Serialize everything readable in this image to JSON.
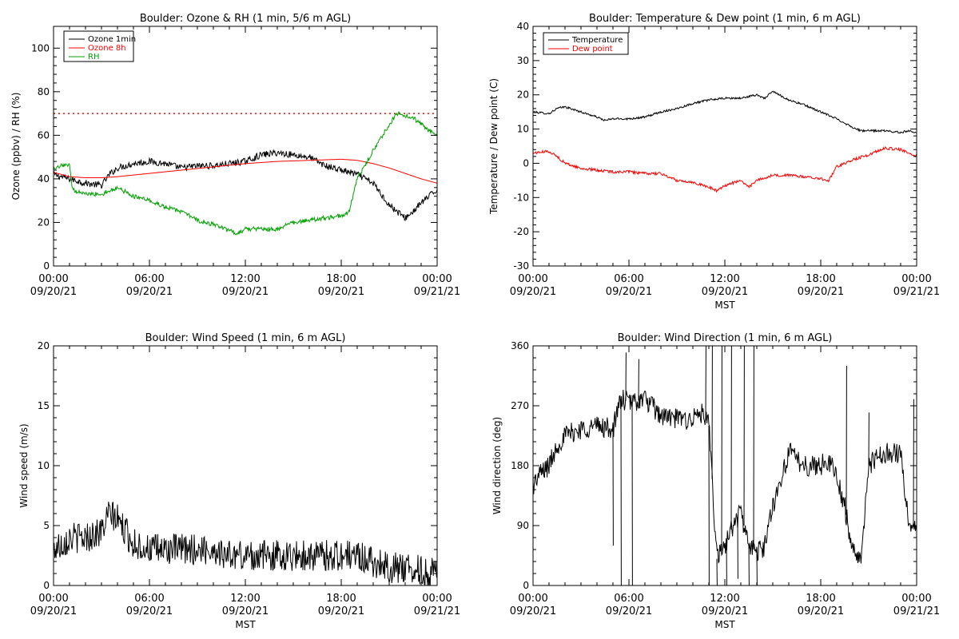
{
  "chart_data": [
    {
      "id": "ozone",
      "type": "line",
      "title": "Boulder: Ozone & RH (1 min, 5/6 m AGL)",
      "xlabel": "",
      "ylabel": "Ozone (ppbv) / RH (%)",
      "xlim": [
        0,
        24
      ],
      "ylim": [
        0,
        110
      ],
      "y_ticks": [
        0,
        20,
        40,
        60,
        80,
        100
      ],
      "x_ticks": [
        0,
        6,
        12,
        18,
        24
      ],
      "x_tick_labels": [
        [
          "00:00",
          "09/20/21"
        ],
        [
          "06:00",
          "09/20/21"
        ],
        [
          "12:00",
          "09/20/21"
        ],
        [
          "18:00",
          "09/20/21"
        ],
        [
          "00:00",
          "09/21/21"
        ]
      ],
      "legend_position": "top-left",
      "reference_line": {
        "y": 70,
        "color": "#ff0000",
        "style": "dotted"
      },
      "series": [
        {
          "name": "Ozone 1min",
          "color": "#000000",
          "noise": 1.5,
          "x": [
            0,
            1,
            2,
            3,
            3.5,
            4,
            5,
            6,
            7,
            8,
            9,
            10,
            11,
            12,
            13,
            14,
            15,
            16,
            17,
            18,
            19,
            20,
            20.5,
            21,
            21.5,
            22,
            22.5,
            23,
            23.5,
            24
          ],
          "y": [
            42,
            40,
            38,
            37,
            42,
            45,
            47,
            48,
            47,
            45,
            46,
            46,
            47,
            48,
            51,
            52,
            51,
            50,
            46,
            44,
            42,
            38,
            33,
            28,
            25,
            22,
            25,
            29,
            32,
            35
          ]
        },
        {
          "name": "Ozone 8h",
          "color": "#ff0000",
          "noise": 0,
          "x": [
            0,
            1,
            2,
            3,
            4,
            6,
            8,
            10,
            12,
            14,
            16,
            18,
            19,
            20,
            21,
            22,
            23,
            24
          ],
          "y": [
            43,
            41,
            40.5,
            40.5,
            41,
            42.5,
            44,
            45.5,
            47,
            48,
            48.5,
            49,
            48.5,
            47,
            45,
            42.5,
            40,
            38
          ]
        },
        {
          "name": "RH",
          "color": "#00a000",
          "noise": 1.0,
          "x": [
            0,
            0.5,
            1,
            1.2,
            2,
            3,
            4,
            4.5,
            5,
            6,
            7,
            8,
            9,
            10,
            11,
            11.5,
            12,
            13,
            14,
            15,
            16,
            17,
            18,
            18.5,
            19,
            20,
            21,
            21.5,
            22,
            22.5,
            23,
            23.5,
            24
          ],
          "y": [
            44,
            46,
            46,
            35,
            33,
            33,
            36,
            34,
            32,
            30,
            27,
            25,
            21,
            19,
            16,
            15,
            17,
            17,
            17,
            20,
            21,
            22,
            23,
            25,
            40,
            53,
            65,
            70,
            69,
            68,
            65,
            62,
            60
          ]
        }
      ]
    },
    {
      "id": "temp",
      "type": "line",
      "title": "Boulder: Temperature & Dew point (1 min, 6 m AGL)",
      "xlabel": "MST",
      "ylabel": "Temperature / Dew point (C)",
      "xlim": [
        0,
        24
      ],
      "ylim": [
        -30,
        40
      ],
      "y_ticks": [
        -30,
        -20,
        -10,
        0,
        10,
        20,
        30,
        40
      ],
      "x_ticks": [
        0,
        6,
        12,
        18,
        24
      ],
      "x_tick_labels": [
        [
          "00:00",
          "09/20/21"
        ],
        [
          "06:00",
          "09/20/21"
        ],
        [
          "12:00",
          "09/20/21"
        ],
        [
          "18:00",
          "09/20/21"
        ],
        [
          "00:00",
          "09/21/21"
        ]
      ],
      "legend_position": "top-left",
      "series": [
        {
          "name": "Temperature",
          "color": "#000000",
          "noise": 0.3,
          "x": [
            0,
            1,
            1.5,
            2,
            3,
            4,
            4.5,
            5,
            6,
            7,
            8,
            9,
            10,
            11,
            12,
            13,
            14,
            14.5,
            15,
            16,
            17,
            18,
            19,
            20,
            20.5,
            21,
            22,
            23,
            23.5,
            24
          ],
          "y": [
            15,
            14.5,
            16,
            16.5,
            15,
            13.5,
            12.5,
            13,
            13,
            13.5,
            15,
            16,
            17.5,
            18.5,
            19,
            19,
            20,
            19,
            21,
            18.5,
            17,
            15,
            13,
            10.5,
            9.5,
            9.5,
            9.5,
            9,
            9.5,
            9
          ]
        },
        {
          "name": "Dew point",
          "color": "#ff0000",
          "noise": 0.4,
          "x": [
            0,
            1,
            1.5,
            2,
            3,
            4,
            5,
            6,
            7,
            8,
            9,
            10,
            11,
            11.5,
            12,
            13,
            13.5,
            14,
            15,
            16,
            17,
            18,
            18.5,
            19,
            20,
            21,
            22,
            23,
            24
          ],
          "y": [
            3,
            3.5,
            2,
            0,
            -1.5,
            -2,
            -2.5,
            -2.5,
            -3,
            -3,
            -5,
            -5.5,
            -7,
            -8,
            -6.5,
            -5,
            -7,
            -5,
            -3.5,
            -3.5,
            -4,
            -4.5,
            -5,
            -1,
            1,
            2.5,
            4.5,
            4,
            2
          ]
        }
      ]
    },
    {
      "id": "wind_speed",
      "type": "line",
      "title": "Boulder: Wind Speed (1 min, 6 m AGL)",
      "xlabel": "MST",
      "ylabel": "Wind speed (m/s)",
      "xlim": [
        0,
        24
      ],
      "ylim": [
        0,
        20
      ],
      "y_ticks": [
        0,
        5,
        10,
        15,
        20
      ],
      "x_ticks": [
        0,
        6,
        12,
        18,
        24
      ],
      "x_tick_labels": [
        [
          "00:00",
          "09/20/21"
        ],
        [
          "06:00",
          "09/20/21"
        ],
        [
          "12:00",
          "09/20/21"
        ],
        [
          "18:00",
          "09/20/21"
        ],
        [
          "00:00",
          "09/21/21"
        ]
      ],
      "series": [
        {
          "name": "",
          "color": "#000000",
          "noise": 1.3,
          "x": [
            0,
            1,
            2,
            3,
            3.5,
            4,
            5,
            6,
            7,
            8,
            9,
            10,
            11,
            12,
            13,
            14,
            15,
            16,
            17,
            18,
            19,
            20,
            21,
            22,
            23,
            24
          ],
          "y": [
            3,
            4,
            4,
            4.5,
            6,
            5.5,
            3.5,
            3,
            3,
            3,
            3,
            3,
            2.5,
            2.5,
            2.5,
            2.5,
            2.5,
            2.5,
            2.5,
            2.5,
            2.5,
            2,
            1.5,
            1.5,
            1.2,
            1
          ]
        }
      ]
    },
    {
      "id": "wind_dir",
      "type": "line",
      "title": "Boulder: Wind Direction (1 min, 6 m AGL)",
      "xlabel": "MST",
      "ylabel": "Wind direction (deg)",
      "xlim": [
        0,
        24
      ],
      "ylim": [
        0,
        360
      ],
      "y_ticks": [
        0,
        90,
        180,
        270,
        360
      ],
      "x_ticks": [
        0,
        6,
        12,
        18,
        24
      ],
      "x_tick_labels": [
        [
          "00:00",
          "09/20/21"
        ],
        [
          "06:00",
          "09/20/21"
        ],
        [
          "12:00",
          "09/20/21"
        ],
        [
          "18:00",
          "09/20/21"
        ],
        [
          "00:00",
          "09/21/21"
        ]
      ],
      "series": [
        {
          "name": "",
          "color": "#000000",
          "noise": 16,
          "x": [
            0,
            0.5,
            1,
            1.5,
            2,
            3,
            4,
            5,
            5.5,
            6,
            7,
            8,
            9,
            10,
            10.5,
            11,
            11.5,
            12,
            12.5,
            13,
            13.5,
            14,
            14.5,
            15,
            16,
            17,
            18,
            18.5,
            19,
            19.5,
            20,
            20.5,
            21,
            22,
            23,
            23.5,
            24
          ],
          "y": [
            150,
            170,
            180,
            210,
            225,
            235,
            240,
            235,
            280,
            275,
            280,
            255,
            250,
            250,
            260,
            240,
            40,
            60,
            90,
            110,
            60,
            50,
            60,
            120,
            200,
            180,
            180,
            190,
            160,
            120,
            50,
            40,
            180,
            200,
            200,
            90,
            90
          ]
        }
      ],
      "spikes": [
        {
          "x": 5.0,
          "y": 60
        },
        {
          "x": 5.5,
          "y": 0
        },
        {
          "x": 5.8,
          "y": 350
        },
        {
          "x": 6.2,
          "y": 0
        },
        {
          "x": 6.6,
          "y": 340
        },
        {
          "x": 10.8,
          "y": 360
        },
        {
          "x": 11.0,
          "y": 0
        },
        {
          "x": 11.2,
          "y": 360
        },
        {
          "x": 11.5,
          "y": 0
        },
        {
          "x": 11.8,
          "y": 360
        },
        {
          "x": 12.1,
          "y": 0
        },
        {
          "x": 12.4,
          "y": 360
        },
        {
          "x": 12.8,
          "y": 10
        },
        {
          "x": 13.2,
          "y": 360
        },
        {
          "x": 13.5,
          "y": 0
        },
        {
          "x": 13.8,
          "y": 360
        },
        {
          "x": 14.0,
          "y": 0
        },
        {
          "x": 19.6,
          "y": 330
        },
        {
          "x": 21.0,
          "y": 260
        },
        {
          "x": 23.8,
          "y": 280
        }
      ]
    }
  ]
}
